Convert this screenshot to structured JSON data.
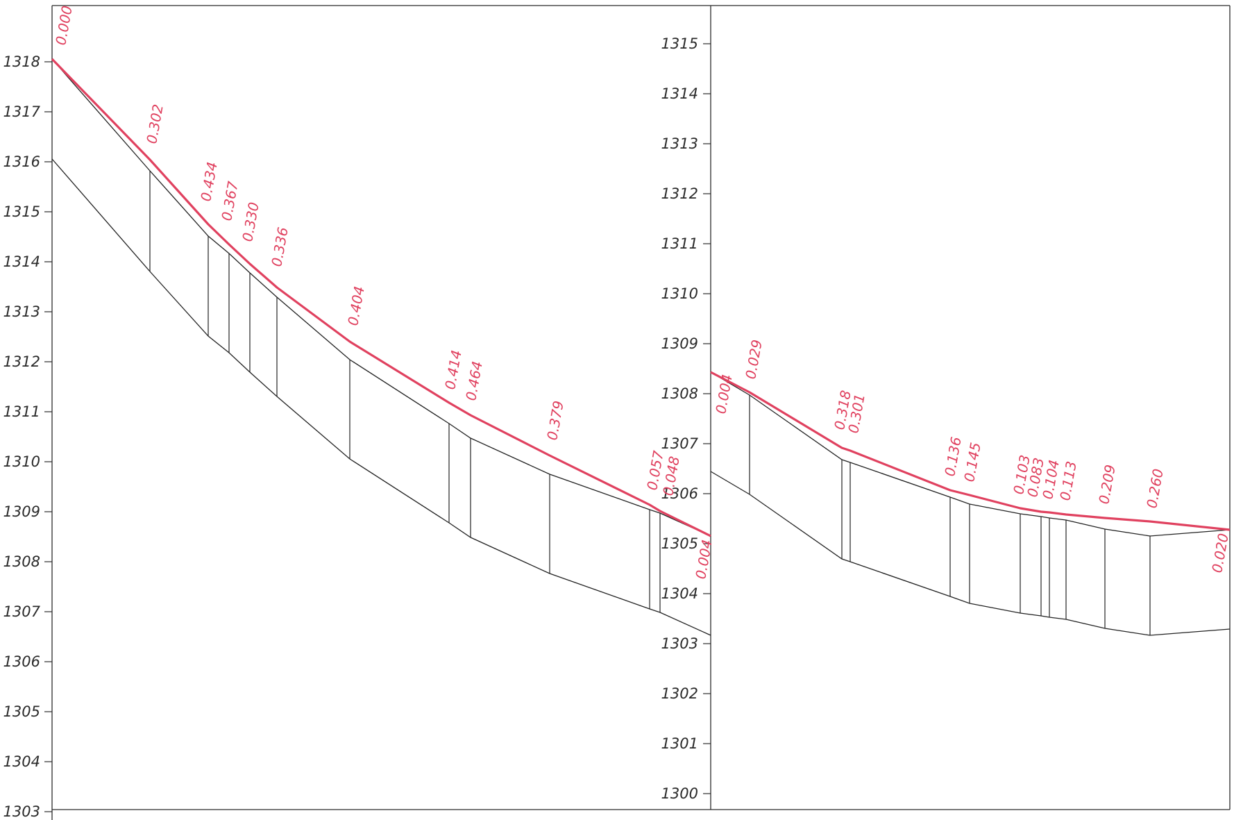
{
  "colors": {
    "ground": "#e0415f",
    "lines": "#222222",
    "background": "#ffffff"
  },
  "left_panel": {
    "axis_labels": [
      "1318",
      "1317",
      "1316",
      "1315",
      "1314",
      "1313",
      "1312",
      "1311",
      "1310",
      "1309",
      "1308",
      "1307",
      "1306",
      "1305",
      "1304",
      "1303"
    ],
    "depth_labels": [
      "0.000",
      "0.302",
      "0.434",
      "0.367",
      "0.330",
      "0.336",
      "0.404",
      "0.414",
      "0.464",
      "0.379",
      "0.057",
      "0.048",
      "0.004"
    ]
  },
  "right_panel": {
    "axis_labels": [
      "1315",
      "1314",
      "1313",
      "1312",
      "1311",
      "1310",
      "1309",
      "1308",
      "1307",
      "1306",
      "1305",
      "1304",
      "1303",
      "1302",
      "1301",
      "1300"
    ],
    "depth_labels": [
      "0.004",
      "0.029",
      "0.318",
      "0.301",
      "0.136",
      "0.145",
      "0.103",
      "0.083",
      "0.104",
      "0.113",
      "0.209",
      "0.260",
      "0.020"
    ]
  }
}
